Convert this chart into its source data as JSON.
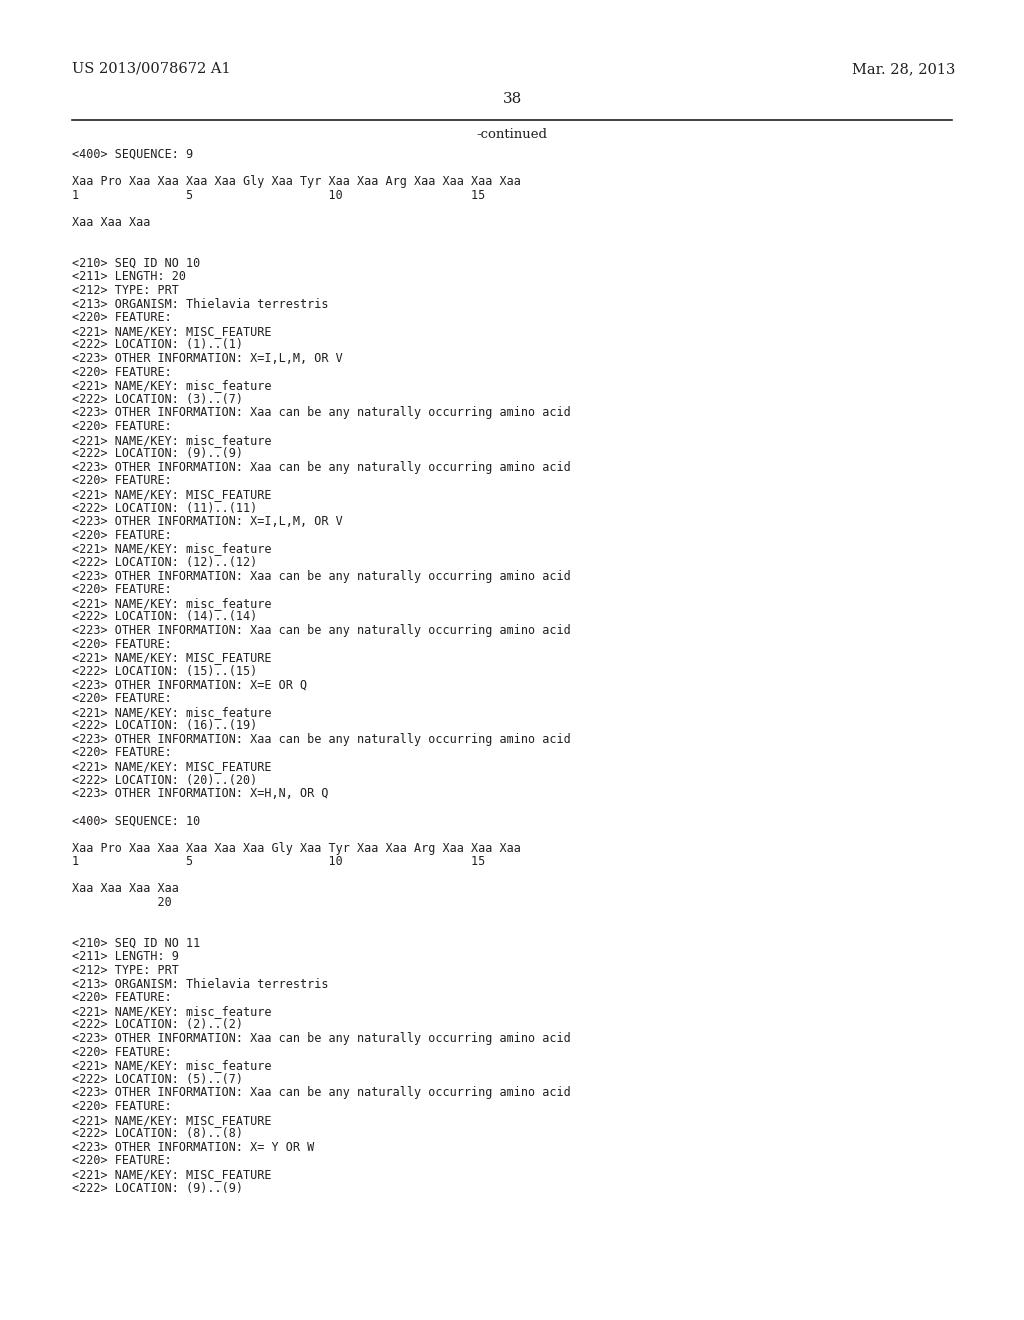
{
  "header_left": "US 2013/0078672 A1",
  "header_right": "Mar. 28, 2013",
  "page_number": "38",
  "continued_text": "-continued",
  "background_color": "#ffffff",
  "text_color": "#231f20",
  "font_size": 8.5,
  "header_font_size": 10.5,
  "page_num_font_size": 11,
  "continued_font_size": 9.5,
  "lines": [
    "<400> SEQUENCE: 9",
    "",
    "Xaa Pro Xaa Xaa Xaa Xaa Gly Xaa Tyr Xaa Xaa Arg Xaa Xaa Xaa Xaa",
    "1               5                   10                  15",
    "",
    "Xaa Xaa Xaa",
    "",
    "",
    "<210> SEQ ID NO 10",
    "<211> LENGTH: 20",
    "<212> TYPE: PRT",
    "<213> ORGANISM: Thielavia terrestris",
    "<220> FEATURE:",
    "<221> NAME/KEY: MISC_FEATURE",
    "<222> LOCATION: (1)..(1)",
    "<223> OTHER INFORMATION: X=I,L,M, OR V",
    "<220> FEATURE:",
    "<221> NAME/KEY: misc_feature",
    "<222> LOCATION: (3)..(7)",
    "<223> OTHER INFORMATION: Xaa can be any naturally occurring amino acid",
    "<220> FEATURE:",
    "<221> NAME/KEY: misc_feature",
    "<222> LOCATION: (9)..(9)",
    "<223> OTHER INFORMATION: Xaa can be any naturally occurring amino acid",
    "<220> FEATURE:",
    "<221> NAME/KEY: MISC_FEATURE",
    "<222> LOCATION: (11)..(11)",
    "<223> OTHER INFORMATION: X=I,L,M, OR V",
    "<220> FEATURE:",
    "<221> NAME/KEY: misc_feature",
    "<222> LOCATION: (12)..(12)",
    "<223> OTHER INFORMATION: Xaa can be any naturally occurring amino acid",
    "<220> FEATURE:",
    "<221> NAME/KEY: misc_feature",
    "<222> LOCATION: (14)..(14)",
    "<223> OTHER INFORMATION: Xaa can be any naturally occurring amino acid",
    "<220> FEATURE:",
    "<221> NAME/KEY: MISC_FEATURE",
    "<222> LOCATION: (15)..(15)",
    "<223> OTHER INFORMATION: X=E OR Q",
    "<220> FEATURE:",
    "<221> NAME/KEY: misc_feature",
    "<222> LOCATION: (16)..(19)",
    "<223> OTHER INFORMATION: Xaa can be any naturally occurring amino acid",
    "<220> FEATURE:",
    "<221> NAME/KEY: MISC_FEATURE",
    "<222> LOCATION: (20)..(20)",
    "<223> OTHER INFORMATION: X=H,N, OR Q",
    "",
    "<400> SEQUENCE: 10",
    "",
    "Xaa Pro Xaa Xaa Xaa Xaa Xaa Gly Xaa Tyr Xaa Xaa Arg Xaa Xaa Xaa",
    "1               5                   10                  15",
    "",
    "Xaa Xaa Xaa Xaa",
    "            20",
    "",
    "",
    "<210> SEQ ID NO 11",
    "<211> LENGTH: 9",
    "<212> TYPE: PRT",
    "<213> ORGANISM: Thielavia terrestris",
    "<220> FEATURE:",
    "<221> NAME/KEY: misc_feature",
    "<222> LOCATION: (2)..(2)",
    "<223> OTHER INFORMATION: Xaa can be any naturally occurring amino acid",
    "<220> FEATURE:",
    "<221> NAME/KEY: misc_feature",
    "<222> LOCATION: (5)..(7)",
    "<223> OTHER INFORMATION: Xaa can be any naturally occurring amino acid",
    "<220> FEATURE:",
    "<221> NAME/KEY: MISC_FEATURE",
    "<222> LOCATION: (8)..(8)",
    "<223> OTHER INFORMATION: X= Y OR W",
    "<220> FEATURE:",
    "<221> NAME/KEY: MISC_FEATURE",
    "<222> LOCATION: (9)..(9)"
  ]
}
